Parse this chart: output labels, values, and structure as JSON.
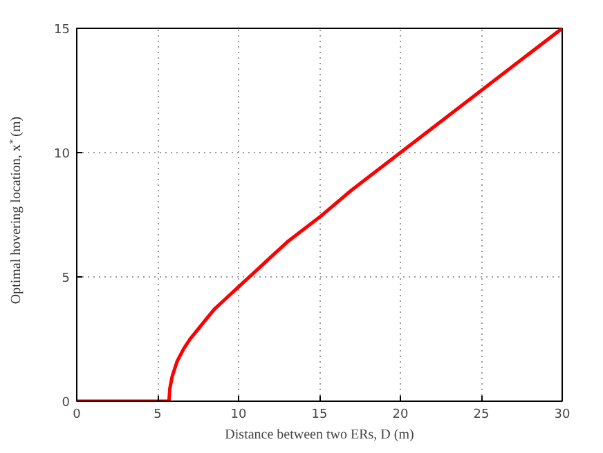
{
  "chart_data": {
    "type": "line",
    "xlabel": "Distance between two ERs, D (m)",
    "ylabel": "Optimal hovering location, x$^{*}$ (m)",
    "series": [
      {
        "color": "#ff0000",
        "x": [
          0,
          5.7,
          5.75,
          5.9,
          6.2,
          6.6,
          7,
          7.5,
          8,
          8.5,
          9,
          10,
          11,
          12,
          13,
          15,
          17,
          20,
          25,
          30
        ],
        "values": [
          0,
          0,
          0.5,
          1.0,
          1.6,
          2.1,
          2.5,
          2.9,
          3.3,
          3.7,
          4.0,
          4.6,
          5.2,
          5.8,
          6.4,
          7.4,
          8.5,
          10,
          12.5,
          15
        ]
      }
    ],
    "xlim": [
      0,
      30
    ],
    "ylim": [
      0,
      15
    ],
    "xticks": [
      0,
      5,
      10,
      15,
      20,
      25,
      30
    ],
    "yticks": [
      0,
      5,
      10,
      15
    ],
    "grid": true,
    "line_style": "solid"
  }
}
